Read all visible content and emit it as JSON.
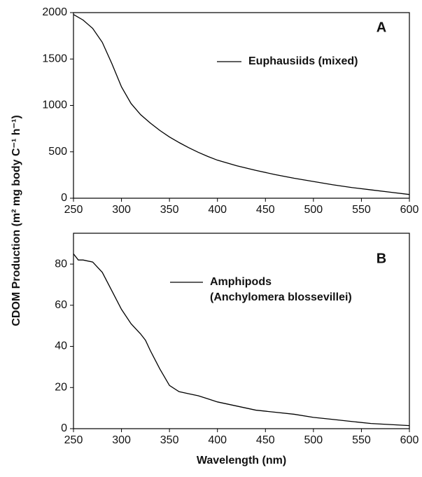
{
  "ylabel": "CDOM Production (m² mg body C⁻¹ h⁻¹)",
  "chart_data": [
    {
      "type": "line",
      "annotation": "A",
      "x": [
        250,
        260,
        270,
        280,
        290,
        300,
        310,
        320,
        330,
        340,
        350,
        360,
        370,
        380,
        390,
        400,
        420,
        440,
        460,
        480,
        500,
        520,
        540,
        560,
        580,
        600
      ],
      "series": [
        {
          "name": [
            "Euphausiids (mixed)"
          ],
          "color": "#000000",
          "values": [
            1980,
            1920,
            1830,
            1680,
            1450,
            1200,
            1020,
            900,
            810,
            730,
            660,
            600,
            545,
            495,
            450,
            410,
            350,
            300,
            255,
            215,
            180,
            145,
            115,
            90,
            65,
            40
          ]
        }
      ],
      "xlim": [
        250,
        600
      ],
      "xticks": [
        250,
        300,
        350,
        400,
        450,
        500,
        550,
        600
      ],
      "ylim": [
        0,
        2000
      ],
      "yticks": [
        0,
        500,
        1000,
        1500,
        2000
      ]
    },
    {
      "type": "line",
      "annotation": "B",
      "xlabel": "Wavelength (nm)",
      "x": [
        250,
        255,
        260,
        270,
        280,
        290,
        300,
        310,
        320,
        325,
        330,
        340,
        350,
        360,
        370,
        380,
        390,
        400,
        420,
        440,
        460,
        480,
        500,
        520,
        540,
        560,
        580,
        600
      ],
      "series": [
        {
          "name": [
            "Amphipods",
            "(Anchylomera blossevillei)"
          ],
          "color": "#000000",
          "values": [
            85,
            82,
            82,
            81,
            76,
            67,
            58,
            51,
            46,
            43,
            38,
            29,
            21,
            18,
            17,
            16,
            14.5,
            13,
            11,
            9,
            8,
            7,
            5.5,
            4.5,
            3.5,
            2.5,
            2,
            1.5
          ]
        }
      ],
      "xlim": [
        250,
        600
      ],
      "xticks": [
        250,
        300,
        350,
        400,
        450,
        500,
        550,
        600
      ],
      "ylim": [
        0,
        95
      ],
      "yticks": [
        0,
        20,
        40,
        60,
        80
      ]
    }
  ]
}
